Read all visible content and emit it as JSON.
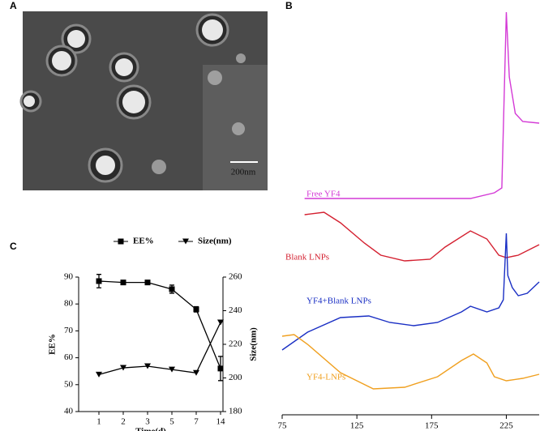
{
  "panel_labels": [
    "A",
    "B",
    "C"
  ],
  "micrograph": {
    "scale_bar": "200nm"
  },
  "chart_data": [
    {
      "type": "line",
      "xlim": [
        75,
        247
      ],
      "xticks": [
        75,
        125,
        175,
        225
      ],
      "ylim": [
        0,
        100
      ],
      "series": [
        {
          "name": "Free YF4",
          "color": "#d43ad6",
          "x": [
            90,
            201,
            217,
            222,
            225,
            227,
            231,
            236,
            247
          ],
          "values": [
            53,
            53,
            54.4,
            55.6,
            99,
            83,
            74,
            72,
            71.6
          ]
        },
        {
          "name": "Blank LNPs",
          "color": "#d42030",
          "x": [
            90,
            103,
            114,
            130,
            141,
            157,
            174,
            184,
            201,
            212,
            220,
            225,
            233,
            247
          ],
          "values": [
            49,
            49.6,
            47,
            42,
            39,
            37.6,
            38,
            41,
            45,
            43,
            39,
            38.4,
            39,
            41.6
          ]
        },
        {
          "name": "YF4+Blank LNPs",
          "color": "#1a2fc4",
          "x": [
            75,
            92,
            114,
            133,
            147,
            163,
            179,
            195,
            201,
            212,
            220,
            223,
            225,
            226,
            229,
            233,
            239,
            247
          ],
          "values": [
            15.6,
            20,
            23.6,
            24,
            22.4,
            21.6,
            22.4,
            25,
            26.4,
            25,
            26,
            28,
            44.4,
            34,
            31,
            29,
            29.6,
            32.4
          ]
        },
        {
          "name": "YF4-LNPs",
          "color": "#f0a020",
          "x": [
            75,
            83,
            92,
            114,
            136,
            157,
            179,
            195,
            203,
            212,
            217,
            225,
            236,
            247
          ],
          "values": [
            19,
            19.4,
            17,
            10,
            6,
            6.4,
            9,
            13,
            14.6,
            12.4,
            9,
            8,
            8.6,
            9.6
          ]
        }
      ]
    },
    {
      "type": "line",
      "x_label": "Time(d)",
      "y_label": "EE%",
      "y2_label": "Size(nm)",
      "categories": [
        "1",
        "2",
        "3",
        "5",
        "7",
        "14"
      ],
      "ylim": [
        40,
        90
      ],
      "yticks": [
        40,
        50,
        60,
        70,
        80,
        90
      ],
      "y2lim": [
        180,
        260
      ],
      "y2ticks": [
        180,
        200,
        220,
        240,
        260
      ],
      "legend": "top",
      "series": [
        {
          "name": "EE%",
          "color": "#000000",
          "marker": "square",
          "values": [
            88.5,
            88,
            88,
            85.5,
            78,
            56
          ],
          "errors": [
            2.5,
            0.5,
            0.5,
            1.5,
            1,
            4.5
          ]
        },
        {
          "name": "Size(nm)",
          "color": "#000000",
          "marker": "triangle-down",
          "axis": "y2",
          "values": [
            202,
            206,
            207,
            205,
            203,
            233
          ]
        }
      ]
    }
  ]
}
